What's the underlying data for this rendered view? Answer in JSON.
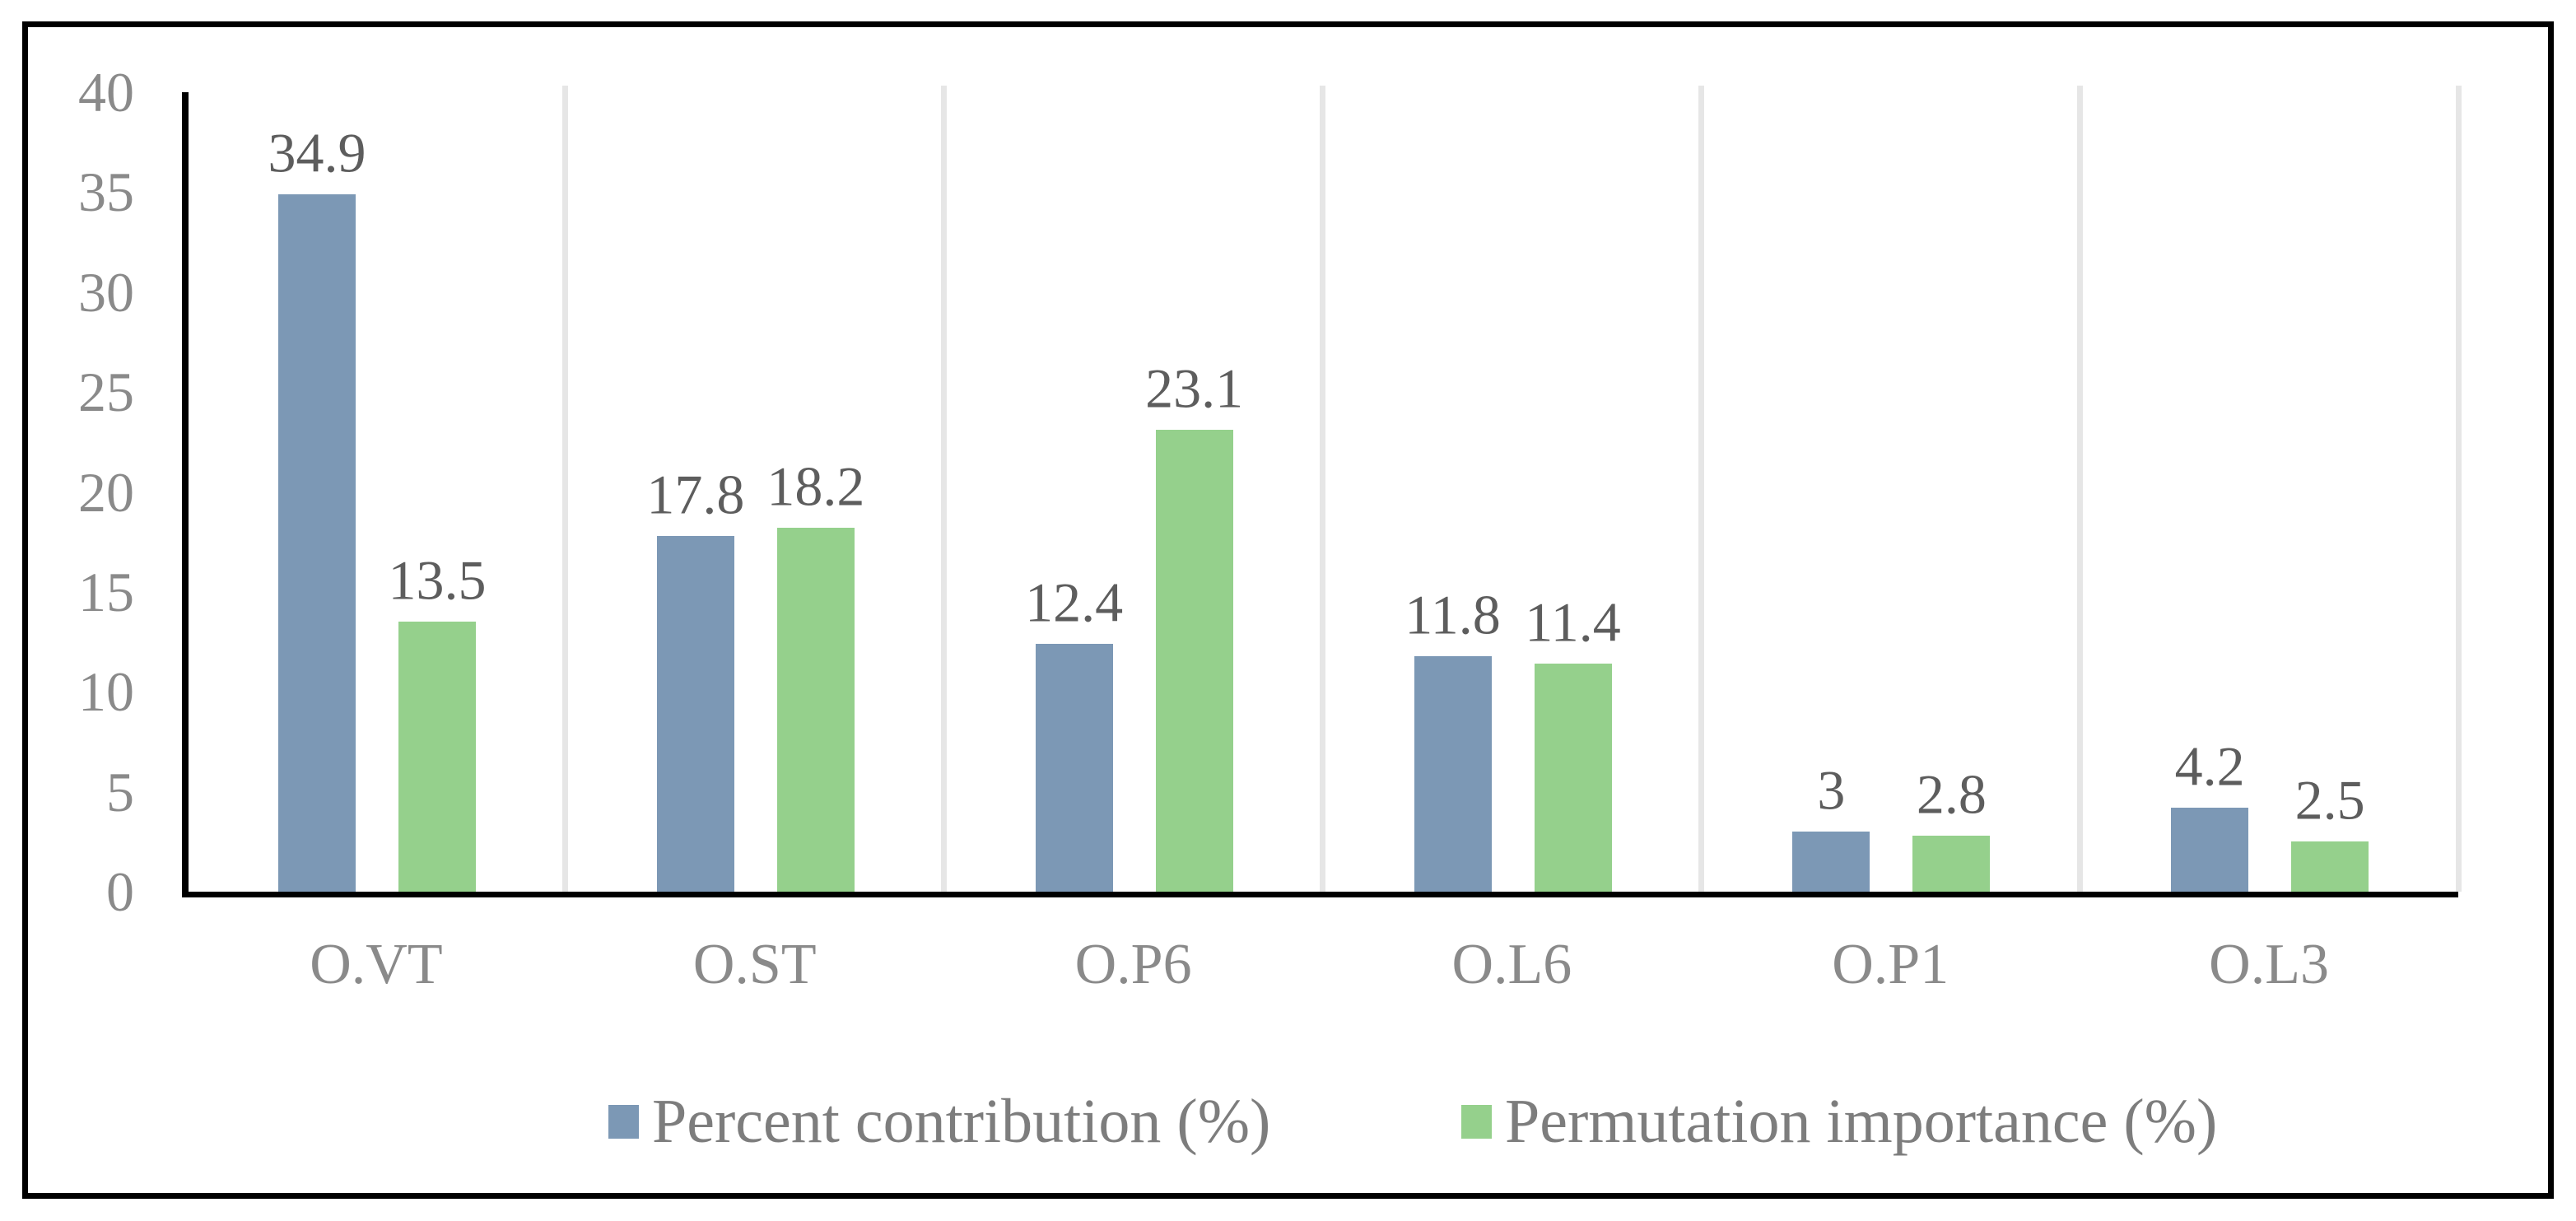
{
  "chart_data": {
    "type": "bar",
    "title": "",
    "xlabel": "",
    "ylabel": "",
    "categories": [
      "O.VT",
      "O.ST",
      "O.P6",
      "O.L6",
      "O.P1",
      "O.L3"
    ],
    "series": [
      {
        "name": "Percent contribution (%)",
        "color": "#7C98B5",
        "values": [
          34.9,
          17.8,
          12.4,
          11.8,
          3,
          4.2
        ],
        "data_labels": [
          "34.9",
          "17.8",
          "12.4",
          "11.8",
          "3",
          "4.2"
        ]
      },
      {
        "name": "Permutation importance (%)",
        "color": "#95D08C",
        "values": [
          13.5,
          18.2,
          23.1,
          11.4,
          2.8,
          2.5
        ],
        "data_labels": [
          "13.5",
          "18.2",
          "23.1",
          "11.4",
          "2.8",
          "2.5"
        ]
      }
    ],
    "ylim": [
      0,
      40
    ],
    "yticks": [
      "0",
      "5",
      "10",
      "15",
      "20",
      "25",
      "30",
      "35",
      "40"
    ],
    "grid": "vertical category separators only",
    "gridline_color": "#E6E6E6",
    "data_label_color": "#5d5d5d",
    "axis_text_color": "#8a8a8a",
    "legend_text_color": "#7d7d7d",
    "legend_position": "bottom",
    "frame": "black outer border"
  }
}
